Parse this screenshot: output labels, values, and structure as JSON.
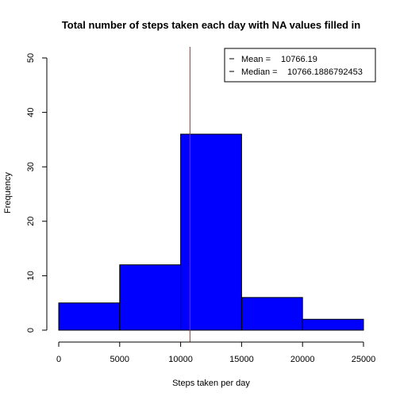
{
  "chart_data": {
    "type": "bar",
    "title": "Total number of steps taken each day with NA values filled in",
    "xlabel": "Steps taken per day",
    "ylabel": "Frequency",
    "bins": [
      {
        "from": 0,
        "to": 5000,
        "count": 5
      },
      {
        "from": 5000,
        "to": 10000,
        "count": 12
      },
      {
        "from": 10000,
        "to": 15000,
        "count": 36
      },
      {
        "from": 15000,
        "to": 20000,
        "count": 6
      },
      {
        "from": 20000,
        "to": 25000,
        "count": 2
      }
    ],
    "xlim": [
      0,
      25000
    ],
    "ylim": [
      0,
      50
    ],
    "x_ticks": [
      0,
      5000,
      10000,
      15000,
      20000,
      25000
    ],
    "y_ticks": [
      0,
      10,
      20,
      30,
      40,
      50
    ],
    "bar_color": "#0000ff",
    "bar_edge_color": "#000000",
    "reference_line": {
      "x": 10766.19,
      "color": "#e0162b"
    },
    "legend": {
      "placement": "top-right",
      "entries": [
        {
          "label": "Mean = ",
          "value": "10766.19"
        },
        {
          "label": "Median = ",
          "value": "10766.1886792453"
        }
      ]
    },
    "grid": false
  }
}
